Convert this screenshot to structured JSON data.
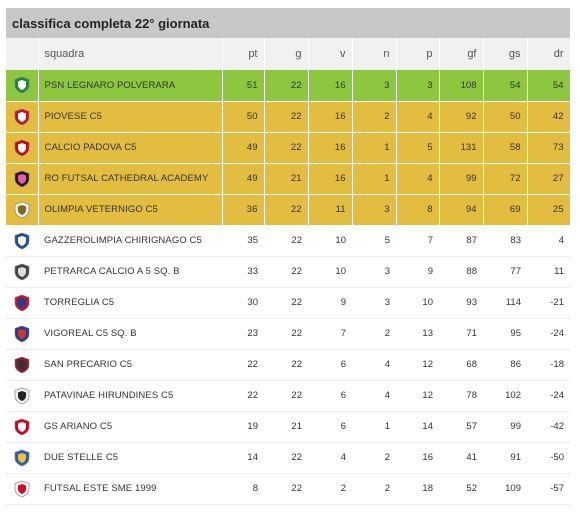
{
  "title": "classifica completa 22° giornata",
  "columns": {
    "squadra": "squadra",
    "pt": "pt",
    "g": "g",
    "v": "v",
    "n": "n",
    "p": "p",
    "gf": "gf",
    "gs": "gs",
    "dr": "dr"
  },
  "colors": {
    "green_zone": "#8dc63f",
    "yellow_zone": "#e2bd3f"
  },
  "rows": [
    {
      "team": "PSN LEGNARO POLVERARA",
      "pt": "51",
      "g": "22",
      "v": "16",
      "n": "3",
      "p": "3",
      "gf": "108",
      "gs": "54",
      "dr": "54",
      "zone": "green",
      "crest": "psn-legnaro-crest-icon",
      "c1": "#1a8a3a",
      "c2": "#ffffff"
    },
    {
      "team": "PIOVESE C5",
      "pt": "50",
      "g": "22",
      "v": "16",
      "n": "2",
      "p": "4",
      "gf": "92",
      "gs": "50",
      "dr": "42",
      "zone": "yellow",
      "crest": "piovese-crest-icon",
      "c1": "#c8102e",
      "c2": "#ffffff"
    },
    {
      "team": "CALCIO PADOVA C5",
      "pt": "49",
      "g": "22",
      "v": "16",
      "n": "1",
      "p": "5",
      "gf": "131",
      "gs": "58",
      "dr": "73",
      "zone": "yellow",
      "crest": "calcio-padova-crest-icon",
      "c1": "#d0021b",
      "c2": "#ffffff"
    },
    {
      "team": "RO FUTSAL CATHEDRAL ACADEMY",
      "pt": "49",
      "g": "21",
      "v": "16",
      "n": "1",
      "p": "4",
      "gf": "99",
      "gs": "72",
      "dr": "27",
      "zone": "yellow",
      "crest": "ro-futsal-crest-icon",
      "c1": "#2a1030",
      "c2": "#e05fa0"
    },
    {
      "team": "OLIMPIA VETERNIGO C5",
      "pt": "36",
      "g": "22",
      "v": "11",
      "n": "3",
      "p": "8",
      "gf": "94",
      "gs": "69",
      "dr": "25",
      "zone": "yellow",
      "crest": "olimpia-veternigo-crest-icon",
      "c1": "#f2f2f2",
      "c2": "#7a6a2a"
    },
    {
      "team": "GAZZEROLIMPIA CHIRIGNAGO C5",
      "pt": "35",
      "g": "22",
      "v": "10",
      "n": "5",
      "p": "7",
      "gf": "87",
      "gs": "83",
      "dr": "4",
      "zone": "none",
      "crest": "gazzerolimpia-crest-icon",
      "c1": "#1f4e9a",
      "c2": "#ffffff"
    },
    {
      "team": "PETRARCA CALCIO A 5 Sq. B",
      "pt": "33",
      "g": "22",
      "v": "10",
      "n": "3",
      "p": "9",
      "gf": "88",
      "gs": "77",
      "dr": "11",
      "zone": "none",
      "crest": "petrarca-crest-icon",
      "c1": "#444444",
      "c2": "#dddddd"
    },
    {
      "team": "TORREGLIA C5",
      "pt": "30",
      "g": "22",
      "v": "9",
      "n": "3",
      "p": "10",
      "gf": "93",
      "gs": "114",
      "dr": "-21",
      "zone": "none",
      "crest": "torreglia-crest-icon",
      "c1": "#c8102e",
      "c2": "#1d3f8f"
    },
    {
      "team": "VIGOREAL C5 Sq. B",
      "pt": "23",
      "g": "22",
      "v": "7",
      "n": "2",
      "p": "13",
      "gf": "71",
      "gs": "95",
      "dr": "-24",
      "zone": "none",
      "crest": "vigoreal-crest-icon",
      "c1": "#1d3f8f",
      "c2": "#d6322d"
    },
    {
      "team": "SAN PRECARIO C5",
      "pt": "22",
      "g": "22",
      "v": "6",
      "n": "4",
      "p": "12",
      "gf": "68",
      "gs": "86",
      "dr": "-18",
      "zone": "none",
      "crest": "san-precario-crest-icon",
      "c1": "#8a1c2b",
      "c2": "#333333"
    },
    {
      "team": "PATAVINAE HIRUNDINES C5",
      "pt": "22",
      "g": "22",
      "v": "6",
      "n": "4",
      "p": "12",
      "gf": "78",
      "gs": "102",
      "dr": "-24",
      "zone": "none",
      "crest": "patavinae-crest-icon",
      "c1": "#eeeeee",
      "c2": "#222222"
    },
    {
      "team": "GS ARIANO C5",
      "pt": "19",
      "g": "21",
      "v": "6",
      "n": "1",
      "p": "14",
      "gf": "57",
      "gs": "99",
      "dr": "-42",
      "zone": "none",
      "crest": "gs-ariano-crest-icon",
      "c1": "#d0021b",
      "c2": "#ffffff"
    },
    {
      "team": "DUE STELLE C5",
      "pt": "14",
      "g": "22",
      "v": "4",
      "n": "2",
      "p": "16",
      "gf": "41",
      "gs": "91",
      "dr": "-50",
      "zone": "none",
      "crest": "due-stelle-crest-icon",
      "c1": "#2a5bb8",
      "c2": "#f2c230"
    },
    {
      "team": "FUTSAL ESTE SME 1999",
      "pt": "8",
      "g": "22",
      "v": "2",
      "n": "2",
      "p": "18",
      "gf": "52",
      "gs": "109",
      "dr": "-57",
      "zone": "none",
      "crest": "futsal-este-crest-icon",
      "c1": "#f4f4f4",
      "c2": "#c8102e"
    }
  ]
}
